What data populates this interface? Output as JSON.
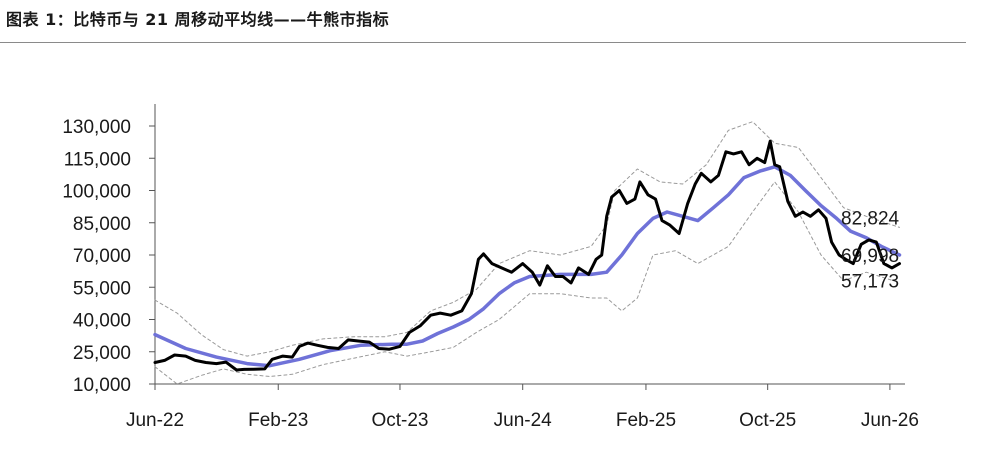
{
  "figure": {
    "title": "图表 1：比特币与 21 周移动平均线——牛熊市指标"
  },
  "chart_data": {
    "type": "line",
    "title": "图表 1：比特币与 21 周移动平均线——牛熊市指标",
    "xlabel": "",
    "ylabel": "",
    "x_tick_labels": [
      "Jun-22",
      "Feb-23",
      "Oct-23",
      "Jun-24",
      "Feb-25",
      "Oct-25",
      "Jun-26"
    ],
    "x_tick_dates": [
      "2022-06",
      "2023-02",
      "2023-10",
      "2024-06",
      "2025-02",
      "2025-10",
      "2026-06"
    ],
    "y_ticks": [
      10000,
      25000,
      40000,
      55000,
      70000,
      85000,
      100000,
      115000,
      130000
    ],
    "y_tick_labels": [
      "10,000",
      "25,000",
      "40,000",
      "55,000",
      "70,000",
      "85,000",
      "100,000",
      "115,000",
      "130,000"
    ],
    "ylim": [
      10000,
      130000
    ],
    "xlim": [
      "2022-06",
      "2026-07"
    ],
    "grid": false,
    "legend": "none",
    "end_labels": [
      "82,824",
      "69,998",
      "57,173"
    ],
    "colors": {
      "price": "#000000",
      "ma21": "#6f72d8",
      "bands": "#9a9a9a"
    },
    "series": [
      {
        "key": "price",
        "x": [
          "2022-06-01",
          "2022-06-20",
          "2022-07-10",
          "2022-08-01",
          "2022-08-20",
          "2022-09-10",
          "2022-10-01",
          "2022-10-20",
          "2022-11-10",
          "2022-11-25",
          "2022-12-15",
          "2023-01-05",
          "2023-01-20",
          "2023-02-10",
          "2023-03-01",
          "2023-03-15",
          "2023-04-01",
          "2023-04-20",
          "2023-05-10",
          "2023-06-01",
          "2023-06-20",
          "2023-07-10",
          "2023-08-01",
          "2023-08-20",
          "2023-09-10",
          "2023-10-01",
          "2023-10-20",
          "2023-11-10",
          "2023-12-01",
          "2023-12-20",
          "2024-01-10",
          "2024-02-01",
          "2024-02-20",
          "2024-03-05",
          "2024-03-15",
          "2024-04-01",
          "2024-04-20",
          "2024-05-10",
          "2024-06-01",
          "2024-06-20",
          "2024-07-05",
          "2024-07-20",
          "2024-08-05",
          "2024-08-20",
          "2024-09-05",
          "2024-09-20",
          "2024-10-10",
          "2024-10-25",
          "2024-11-05",
          "2024-11-15",
          "2024-11-25",
          "2024-12-10",
          "2024-12-25",
          "2025-01-10",
          "2025-01-20",
          "2025-02-05",
          "2025-02-20",
          "2025-03-05",
          "2025-03-20",
          "2025-04-08",
          "2025-04-25",
          "2025-05-10",
          "2025-05-22",
          "2025-06-10",
          "2025-06-25",
          "2025-07-10",
          "2025-07-25",
          "2025-08-10",
          "2025-08-25",
          "2025-09-10",
          "2025-09-25",
          "2025-10-06",
          "2025-10-15",
          "2025-10-25",
          "2025-11-10",
          "2025-11-25",
          "2025-12-10",
          "2025-12-25",
          "2026-01-10",
          "2026-01-25",
          "2026-02-05",
          "2026-02-20",
          "2026-03-05",
          "2026-03-20",
          "2026-04-05",
          "2026-04-20",
          "2026-05-05",
          "2026-05-20",
          "2026-06-05",
          "2026-06-20"
        ],
        "values": [
          20000,
          21000,
          23500,
          23000,
          21000,
          20000,
          19500,
          20200,
          16500,
          16800,
          16900,
          17000,
          21500,
          23000,
          22500,
          27500,
          29000,
          28000,
          27000,
          26500,
          30500,
          30000,
          29500,
          26500,
          26200,
          27500,
          34000,
          37000,
          42000,
          43000,
          42000,
          44000,
          52000,
          68000,
          70500,
          66000,
          64000,
          62000,
          66000,
          62000,
          56000,
          65000,
          60000,
          60000,
          57000,
          64000,
          61000,
          68000,
          70000,
          88000,
          97000,
          100000,
          94000,
          96000,
          104000,
          98000,
          96000,
          86000,
          84000,
          80000,
          94000,
          103000,
          108000,
          104000,
          107000,
          118000,
          117000,
          118000,
          112000,
          115000,
          113000,
          123000,
          112000,
          111000,
          95000,
          88000,
          90000,
          88000,
          91000,
          87000,
          76000,
          70000,
          68000,
          66000,
          75000,
          77000,
          76000,
          66000,
          64000,
          66000
        ]
      },
      {
        "key": "ma21",
        "x": [
          "2022-06-01",
          "2022-08-01",
          "2022-10-01",
          "2022-12-01",
          "2023-01-15",
          "2023-03-15",
          "2023-05-15",
          "2023-07-15",
          "2023-09-15",
          "2023-10-15",
          "2023-11-15",
          "2023-12-15",
          "2024-01-15",
          "2024-02-15",
          "2024-03-15",
          "2024-04-15",
          "2024-05-15",
          "2024-06-15",
          "2024-08-15",
          "2024-10-15",
          "2024-11-15",
          "2024-12-15",
          "2025-01-15",
          "2025-02-15",
          "2025-03-15",
          "2025-04-15",
          "2025-05-15",
          "2025-06-15",
          "2025-07-15",
          "2025-08-15",
          "2025-09-15",
          "2025-10-15",
          "2025-11-15",
          "2025-12-15",
          "2026-01-15",
          "2026-02-15",
          "2026-03-15",
          "2026-04-15",
          "2026-05-15",
          "2026-06-20"
        ],
        "values": [
          33000,
          26500,
          22500,
          19500,
          18500,
          21500,
          25500,
          28000,
          28500,
          28500,
          30000,
          33500,
          36500,
          40000,
          45000,
          52000,
          57000,
          60000,
          61000,
          61000,
          62000,
          70000,
          80000,
          87000,
          90000,
          88000,
          86000,
          92000,
          98000,
          106000,
          109000,
          111000,
          107000,
          100000,
          93000,
          87000,
          81000,
          78000,
          74000,
          69998
        ]
      },
      {
        "key": "upper_band",
        "x": [
          "2022-06-01",
          "2022-07-15",
          "2022-09-01",
          "2022-10-15",
          "2022-12-01",
          "2023-01-15",
          "2023-03-01",
          "2023-05-01",
          "2023-07-01",
          "2023-09-01",
          "2023-10-15",
          "2023-12-01",
          "2024-01-15",
          "2024-03-01",
          "2024-04-15",
          "2024-06-15",
          "2024-08-15",
          "2024-10-15",
          "2024-11-15",
          "2024-12-01",
          "2025-01-15",
          "2025-03-01",
          "2025-04-15",
          "2025-06-01",
          "2025-07-15",
          "2025-09-01",
          "2025-10-15",
          "2025-12-01",
          "2026-01-15",
          "2026-03-01",
          "2026-04-15",
          "2026-06-20"
        ],
        "values": [
          49000,
          43000,
          33000,
          26000,
          23000,
          25000,
          28000,
          31000,
          32000,
          32000,
          34000,
          44000,
          48000,
          54000,
          66000,
          72000,
          70000,
          74000,
          84000,
          100000,
          110000,
          104000,
          103000,
          112000,
          128000,
          132000,
          122000,
          120000,
          106000,
          92000,
          88000,
          82824
        ]
      },
      {
        "key": "lower_band",
        "x": [
          "2022-06-01",
          "2022-07-15",
          "2022-09-01",
          "2022-10-15",
          "2022-12-01",
          "2023-01-15",
          "2023-03-01",
          "2023-05-01",
          "2023-07-01",
          "2023-09-01",
          "2023-10-15",
          "2023-12-01",
          "2024-01-15",
          "2024-03-01",
          "2024-04-15",
          "2024-06-15",
          "2024-08-15",
          "2024-10-15",
          "2024-11-15",
          "2024-12-15",
          "2025-01-15",
          "2025-02-15",
          "2025-04-01",
          "2025-05-15",
          "2025-07-15",
          "2025-09-01",
          "2025-10-15",
          "2025-12-01",
          "2026-01-15",
          "2026-03-01",
          "2026-04-15",
          "2026-06-20"
        ],
        "values": [
          18000,
          10000,
          14000,
          17000,
          14500,
          13500,
          14500,
          19000,
          22000,
          25000,
          23000,
          25000,
          27000,
          34000,
          40000,
          52000,
          52000,
          50000,
          50000,
          44000,
          50000,
          70000,
          72000,
          66000,
          74000,
          90000,
          104000,
          90000,
          70000,
          58000,
          62000,
          57173
        ]
      }
    ]
  }
}
